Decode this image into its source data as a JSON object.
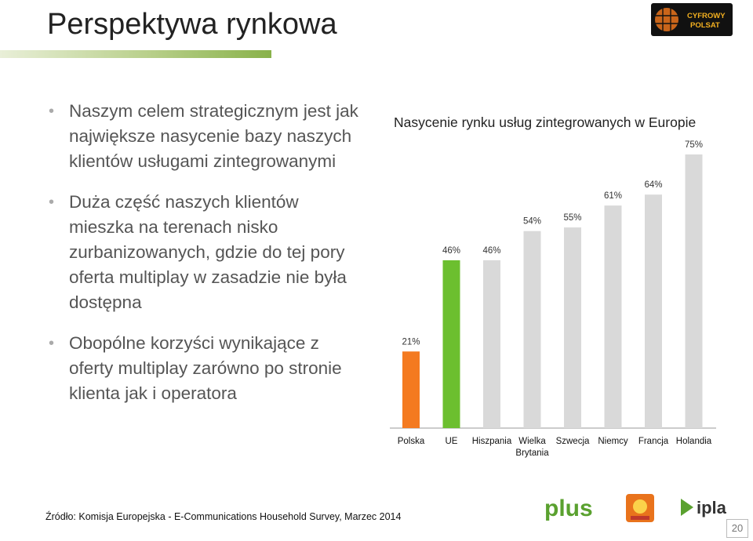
{
  "slide": {
    "title": "Perspektywa rynkowa",
    "page_number": "20",
    "source": "Źródło: Komisja Europejska - E-Communications Household Survey, Marzec 2014"
  },
  "bullets": [
    "Naszym celem strategicznym jest jak największe nasycenie bazy naszych klientów usługami zintegrowanymi",
    "Duża część naszych klientów mieszka na terenach nisko zurbanizowanych, gdzie do tej pory oferta multiplay w zasadzie nie była dostępna",
    "Obopólne korzyści wynikające z oferty multiplay zarówno po stronie klienta jak i operatora"
  ],
  "logos": {
    "top_right": "cyfrowy-polsat-logo",
    "bottom": [
      "plus-logo",
      "polsat-logo",
      "ipla-logo"
    ],
    "cp_text": [
      "CYFROWY",
      "POLSAT"
    ],
    "plus_text": "plus",
    "ipla_text": "ipla"
  },
  "chart_data": {
    "type": "bar",
    "title": "Nasycenie rynku usług zintegrowanych w Europie",
    "categories": [
      "Polska",
      "UE",
      "Hiszpania",
      "Wielka Brytania",
      "Szwecja",
      "Niemcy",
      "Francja",
      "Holandia"
    ],
    "category_lines": [
      [
        "Polska"
      ],
      [
        "UE"
      ],
      [
        "Hiszpania"
      ],
      [
        "Wielka",
        "Brytania"
      ],
      [
        "Szwecja"
      ],
      [
        "Niemcy"
      ],
      [
        "Francja"
      ],
      [
        "Holandia"
      ]
    ],
    "values": [
      21,
      46,
      46,
      54,
      55,
      61,
      64,
      75
    ],
    "labels": [
      "21%",
      "46%",
      "46%",
      "54%",
      "55%",
      "61%",
      "64%",
      "75%"
    ],
    "colors": [
      "#f47a20",
      "#6cbf2f",
      "#d9d9d9",
      "#d9d9d9",
      "#d9d9d9",
      "#d9d9d9",
      "#d9d9d9",
      "#d9d9d9"
    ],
    "xlabel": "",
    "ylabel": "",
    "ylim": [
      0,
      75
    ],
    "grid": false,
    "legend": "none"
  }
}
